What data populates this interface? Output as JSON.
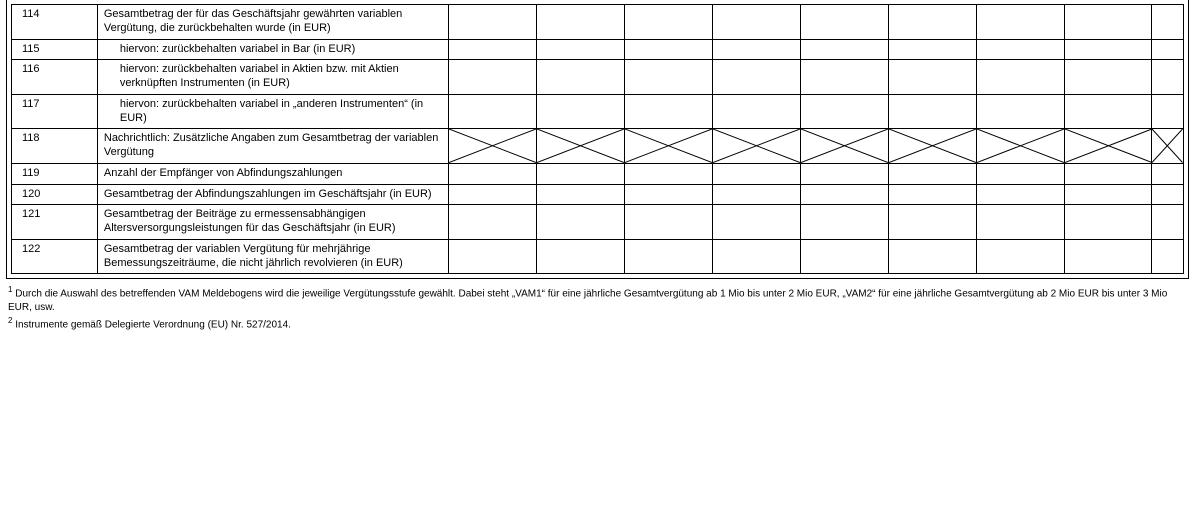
{
  "table": {
    "rows": [
      {
        "num": "114",
        "text": "Gesamtbetrag der für das Geschäftsjahr gewährten variablen Vergütung, die zurückbehalten wurde (in EUR)",
        "indent": false,
        "crossed": false
      },
      {
        "num": "115",
        "text": "hiervon: zurückbehalten variabel in Bar (in EUR)",
        "indent": true,
        "crossed": false
      },
      {
        "num": "116",
        "text": "hiervon: zurückbehalten variabel in Aktien bzw. mit Aktien verknüpften Instrumenten (in EUR)",
        "indent": true,
        "crossed": false
      },
      {
        "num": "117",
        "text": "hiervon: zurückbehalten variabel in „anderen Instrumenten“ (in EUR)",
        "indent": true,
        "crossed": false
      },
      {
        "num": "118",
        "text": "Nachrichtlich: Zusätzliche Angaben zum Gesamtbetrag der variablen Vergütung",
        "indent": false,
        "crossed": true
      },
      {
        "num": "119",
        "text": "Anzahl der Empfänger von Abfindungszahlungen",
        "indent": false,
        "crossed": false
      },
      {
        "num": "120",
        "text": "Gesamtbetrag der Abfindungszahlungen im Geschäftsjahr (in EUR)",
        "indent": false,
        "crossed": false
      },
      {
        "num": "121",
        "text": "Gesamtbetrag der Beiträge zu ermessensabhängigen Altersversorgungsleistungen für das Geschäftsjahr (in EUR)",
        "indent": false,
        "crossed": false
      },
      {
        "num": "122",
        "text": "Gesamtbetrag der variablen Vergütung für mehrjährige Bemessungszeiträume, die nicht jährlich revolvieren (in EUR)",
        "indent": false,
        "crossed": false
      }
    ],
    "data_col_count": 9,
    "cross_stroke": "#000000",
    "cross_stroke_width": 1,
    "border_color": "#000000"
  },
  "footnotes": {
    "fn1_marker": "1",
    "fn1_text": "Durch die Auswahl des betreffenden VAM Meldebogens wird die jeweilige Vergütungsstufe gewählt. Dabei steht „VAM1“ für eine jährliche Gesamtvergütung ab 1 Mio bis unter 2 Mio EUR, „VAM2“ für eine jährliche Gesamtvergütung ab 2 Mio EUR bis unter 3 Mio EUR, usw.",
    "fn2_marker": "2",
    "fn2_text": "Instrumente gemäß Delegierte Verordnung (EU) Nr. 527/2014."
  }
}
